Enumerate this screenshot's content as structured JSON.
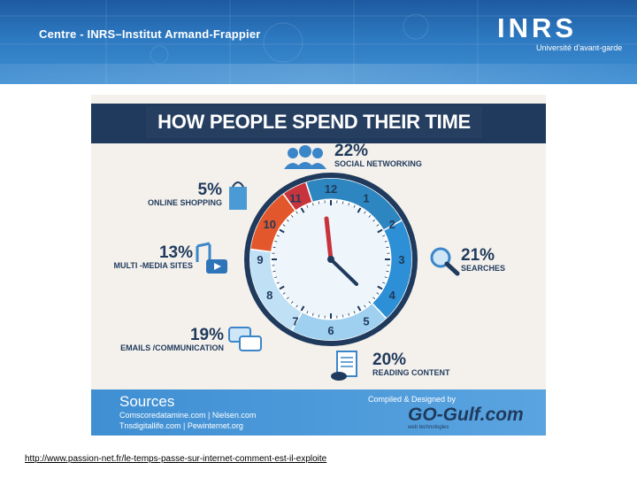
{
  "header": {
    "title": "Centre - INRS–Institut Armand-Frappier",
    "logo": {
      "word": "INRS",
      "tagline": "Université d'avant-garde"
    }
  },
  "infographic": {
    "title": "HOW PEOPLE SPEND THEIR TIME",
    "stats": [
      {
        "percent": "22%",
        "label": "SOCIAL NETWORKING",
        "icon": "people-icon",
        "color": "#2e86c1"
      },
      {
        "percent": "21%",
        "label": "SEARCHES",
        "icon": "magnifier-icon",
        "color": "#2d8fd5"
      },
      {
        "percent": "20%",
        "label": "READING CONTENT",
        "icon": "document-icon",
        "color": "#9fd0ef"
      },
      {
        "percent": "19%",
        "label": "EMAILS /COMMUNICATION",
        "icon": "chat-bubbles-icon",
        "color": "#bfe0f5"
      },
      {
        "percent": "13%",
        "label": "MULTI -MEDIA SITES",
        "icon": "music-video-icon",
        "color": "#e2572b"
      },
      {
        "percent": "5%",
        "label": "ONLINE SHOPPING",
        "icon": "shopping-bag-icon",
        "color": "#c8343c"
      }
    ],
    "clock_numbers": [
      "12",
      "1",
      "2",
      "3",
      "4",
      "5",
      "6",
      "7",
      "8",
      "9",
      "10",
      "11"
    ],
    "sources": {
      "title": "Sources",
      "lines": [
        "Comscoredatamine.com | Nielsen.com",
        "Tnsdigitallife.com | Pewinternet.org"
      ],
      "compiled": "Compiled & Designed by",
      "brand": "GO-Gulf.com",
      "brand_sub": "web technologies"
    }
  },
  "link": "http://www.passion-net.fr/le-temps-passe-sur-internet-comment-est-il-exploite"
}
